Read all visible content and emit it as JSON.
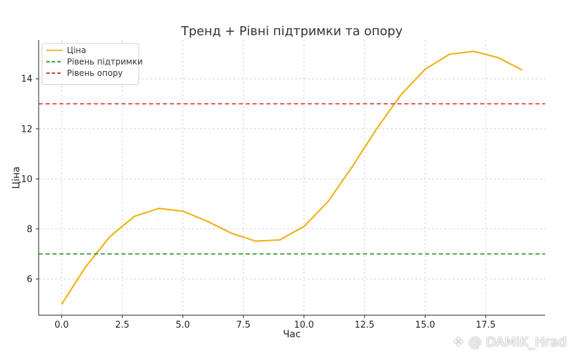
{
  "chart_data": {
    "type": "line",
    "title": "Тренд + Рівні підтримки та опору",
    "xlabel": "Час",
    "ylabel": "Ціна",
    "xlim": [
      -0.95,
      19.95
    ],
    "ylim": [
      4.55,
      15.55
    ],
    "xticks": [
      0.0,
      2.5,
      5.0,
      7.5,
      10.0,
      12.5,
      15.0,
      17.5
    ],
    "xtick_labels": [
      "0.0",
      "2.5",
      "5.0",
      "7.5",
      "10.0",
      "12.5",
      "15.0",
      "17.5"
    ],
    "yticks": [
      6,
      8,
      10,
      12,
      14
    ],
    "ytick_labels": [
      "6",
      "8",
      "10",
      "12",
      "14"
    ],
    "grid": true,
    "legend_position": "top-left",
    "series": [
      {
        "name": "Ціна",
        "color": "#f0b21a",
        "style": "solid",
        "x": [
          0,
          1,
          2,
          3,
          4,
          5,
          6,
          7,
          8,
          9,
          10,
          11,
          12,
          13,
          14,
          15,
          16,
          17,
          18,
          19
        ],
        "y": [
          4.99,
          6.5,
          7.7,
          8.5,
          8.82,
          8.71,
          8.31,
          7.83,
          7.51,
          7.56,
          8.1,
          9.1,
          10.5,
          12.0,
          13.36,
          14.38,
          14.98,
          15.1,
          14.85,
          14.35
        ]
      },
      {
        "name": "Рівень підтримки",
        "color": "#1a8a1a",
        "style": "dashed",
        "x": [
          -0.95,
          19.95
        ],
        "y": [
          7,
          7
        ]
      },
      {
        "name": "Рівень опору",
        "color": "#d42020",
        "style": "dashed",
        "x": [
          -0.95,
          19.95
        ],
        "y": [
          13,
          13
        ]
      }
    ]
  },
  "watermark": {
    "icon": "diamond-logo-icon",
    "text": "@ DAMIK_Hrad"
  }
}
